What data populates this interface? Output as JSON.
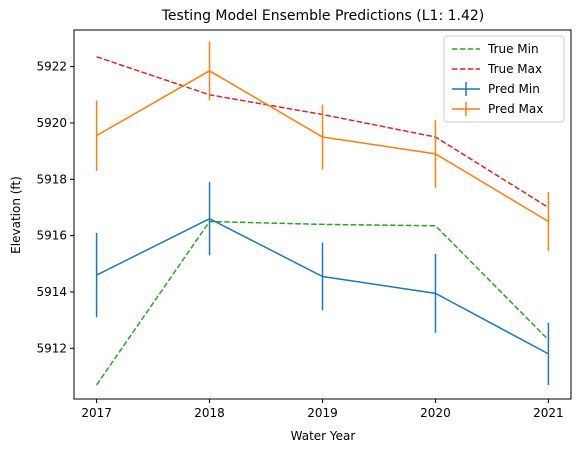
{
  "chart_data": {
    "type": "line",
    "title": "Testing Model Ensemble Predictions (L1: 1.42)",
    "xlabel": "Water Year",
    "ylabel": "Elevation (ft)",
    "x": [
      2017,
      2018,
      2019,
      2020,
      2021
    ],
    "xticks": [
      "2017",
      "2018",
      "2019",
      "2020",
      "2021"
    ],
    "yticks": [
      "5912",
      "5914",
      "5916",
      "5918",
      "5920",
      "5922"
    ],
    "ylim": [
      5910.2,
      5923.3
    ],
    "grid": false,
    "legend": "top-right",
    "series": [
      {
        "name": "True Min",
        "style": "dashed",
        "color": "#2ca02c",
        "values": [
          5910.7,
          5916.5,
          5916.4,
          5916.35,
          5912.3
        ]
      },
      {
        "name": "True Max",
        "style": "dashed",
        "color": "#d62728",
        "values": [
          5922.35,
          5921.0,
          5920.3,
          5919.5,
          5917.0
        ]
      },
      {
        "name": "Pred Min",
        "style": "errorbar",
        "color": "#1f77b4",
        "values": [
          5914.6,
          5916.6,
          5914.55,
          5913.95,
          5911.8
        ],
        "errors": [
          1.5,
          1.3,
          1.2,
          1.4,
          1.1
        ]
      },
      {
        "name": "Pred Max",
        "style": "errorbar",
        "color": "#ff7f0e",
        "values": [
          5919.55,
          5921.85,
          5919.5,
          5918.9,
          5916.5
        ],
        "errors": [
          1.25,
          1.05,
          1.15,
          1.2,
          1.05
        ]
      }
    ]
  }
}
